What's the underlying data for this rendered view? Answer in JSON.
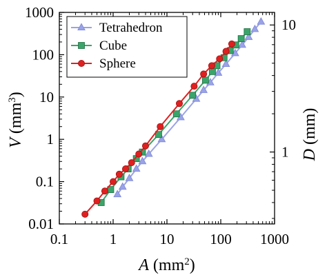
{
  "chart_data": {
    "type": "scatter",
    "x_scale": "log",
    "y_scale": "log",
    "y2_scale": "log",
    "xlim": [
      0.1,
      1000
    ],
    "ylim": [
      0.01,
      1000
    ],
    "y2lim": [
      0.2714,
      12.56
    ],
    "grid": false,
    "legend_position": "top-left",
    "x_ticks": [
      {
        "value": 0.1,
        "label": "0.1"
      },
      {
        "value": 1,
        "label": "1"
      },
      {
        "value": 10,
        "label": "10"
      },
      {
        "value": 100,
        "label": "100"
      },
      {
        "value": 1000,
        "label": "1000"
      }
    ],
    "y_ticks": [
      {
        "value": 0.01,
        "label": "0.01"
      },
      {
        "value": 0.1,
        "label": "0.1"
      },
      {
        "value": 1,
        "label": "1"
      },
      {
        "value": 10,
        "label": "10"
      },
      {
        "value": 100,
        "label": "100"
      },
      {
        "value": 1000,
        "label": "1000"
      }
    ],
    "y2_ticks": [
      {
        "value": 1,
        "label": "1"
      },
      {
        "value": 10,
        "label": "10"
      }
    ],
    "xlabel": {
      "base": "A",
      "unit": " (mm",
      "sup": "2",
      "close": ")"
    },
    "ylabel": {
      "base": "V",
      "unit": " (mm",
      "sup": "3",
      "close": ")"
    },
    "y2label": {
      "base": "D",
      "unit": " (mm)"
    },
    "series": [
      {
        "name": "Tetrahedron",
        "color": "#9aa3e6",
        "stroke": "#7d87d6",
        "marker": "triangle",
        "x": [
          1.2,
          1.5,
          2.0,
          2.7,
          3.5,
          4.6,
          8.0,
          18,
          35,
          48,
          64,
          90,
          125,
          185,
          250,
          330,
          430,
          560
        ],
        "y": [
          0.05,
          0.075,
          0.12,
          0.2,
          0.3,
          0.45,
          1.0,
          3.3,
          9.0,
          14.5,
          22,
          37,
          60,
          108,
          170,
          260,
          400,
          600
        ]
      },
      {
        "name": "Cube",
        "color": "#3aa56a",
        "stroke": "#1f6e41",
        "marker": "square",
        "x": [
          0.6,
          0.9,
          1.4,
          1.9,
          2.7,
          3.5,
          7.0,
          15,
          30,
          52,
          70,
          85,
          115,
          150,
          190,
          240,
          310
        ],
        "y": [
          0.032,
          0.065,
          0.13,
          0.2,
          0.35,
          0.5,
          1.3,
          4.0,
          11,
          25,
          40,
          55,
          85,
          125,
          170,
          240,
          350
        ]
      },
      {
        "name": "Sphere",
        "color": "#e02020",
        "stroke": "#a01010",
        "marker": "circle",
        "x": [
          0.3,
          0.5,
          0.7,
          1.0,
          1.3,
          1.7,
          2.2,
          3.0,
          4.0,
          7.5,
          17,
          32,
          48,
          68,
          95,
          125,
          160
        ],
        "y": [
          0.017,
          0.035,
          0.06,
          0.1,
          0.15,
          0.2,
          0.28,
          0.45,
          0.7,
          2.0,
          7.0,
          18,
          35,
          55,
          80,
          120,
          180
        ]
      }
    ]
  }
}
